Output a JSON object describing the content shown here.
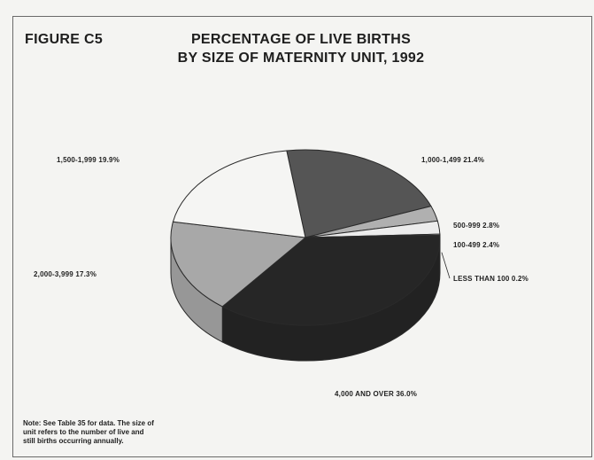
{
  "figure_label": "FIGURE C5",
  "chart_data": {
    "type": "pie",
    "title": "PERCENTAGE OF LIVE BIRTHS",
    "subtitle": "BY SIZE OF MATERNITY UNIT, 1992",
    "slices": [
      {
        "label": "1,000-1,499",
        "value": 21.4,
        "display": "1,000-1,499 21.4%",
        "color": "#555555"
      },
      {
        "label": "500-999",
        "value": 2.8,
        "display": "500-999 2.8%",
        "color": "#b0b0b0"
      },
      {
        "label": "100-499",
        "value": 2.4,
        "display": "100-499 2.4%",
        "color": "#ececec"
      },
      {
        "label": "LESS THAN 100",
        "value": 0.2,
        "display": "LESS THAN 100 0.2%",
        "color": "#e0e0e0"
      },
      {
        "label": "4,000 AND OVER",
        "value": 36.0,
        "display": "4,000 AND OVER 36.0%",
        "color": "#262626"
      },
      {
        "label": "2,000-3,999",
        "value": 17.3,
        "display": "2,000-3,999 17.3%",
        "color": "#a8a8a8"
      },
      {
        "label": "1,500-1,999",
        "value": 19.9,
        "display": "1,500-1,999 19.9%",
        "color": "#f5f5f3"
      }
    ]
  },
  "note": {
    "line1": "Note: See Table 35 for data. The size of",
    "line2": "unit refers to the number of live and",
    "line3": "still births occurring annually."
  }
}
